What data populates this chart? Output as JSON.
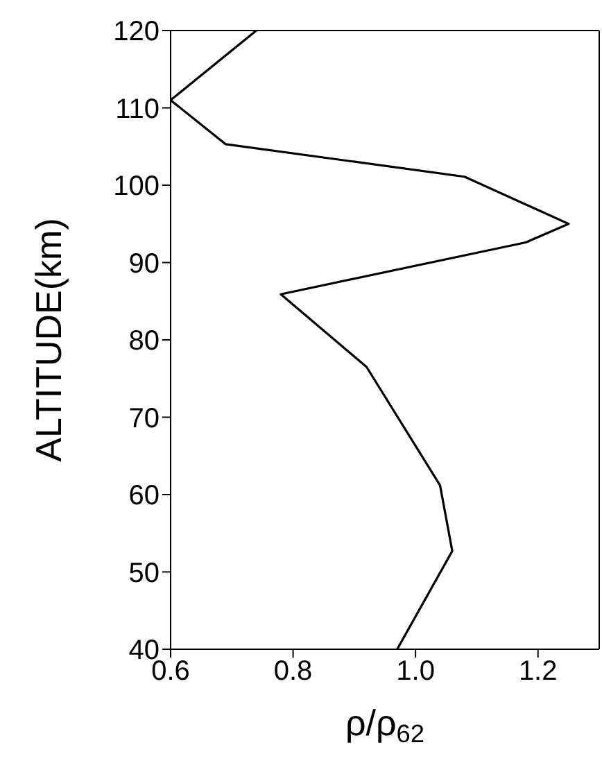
{
  "chart_data": {
    "type": "line",
    "xlabel": "ρ/ρ$_{62}$",
    "ylabel": "ALTITUDE(km)",
    "x": [
      0.74,
      0.6,
      0.69,
      1.08,
      1.25,
      1.18,
      0.78,
      0.92,
      1.04,
      1.06,
      0.97
    ],
    "series": [
      {
        "color": "#000000",
        "values": [
          120,
          111,
          105.3,
          101.1,
          95,
          92.6,
          85.9,
          76.5,
          61.2,
          52.7,
          40
        ]
      }
    ],
    "xlim": [
      0.6,
      1.3
    ],
    "xticks": [
      {
        "value": 0.6,
        "label": "0.6"
      },
      {
        "value": 0.8,
        "label": "0.8"
      },
      {
        "value": 1.0,
        "label": "1.0"
      },
      {
        "value": 1.2,
        "label": "1.2"
      }
    ],
    "ylim": [
      40,
      120
    ],
    "yticks": [
      40,
      50,
      60,
      70,
      80,
      90,
      100,
      110,
      120
    ],
    "grid": false,
    "marker": "none",
    "line_style": "solid"
  }
}
